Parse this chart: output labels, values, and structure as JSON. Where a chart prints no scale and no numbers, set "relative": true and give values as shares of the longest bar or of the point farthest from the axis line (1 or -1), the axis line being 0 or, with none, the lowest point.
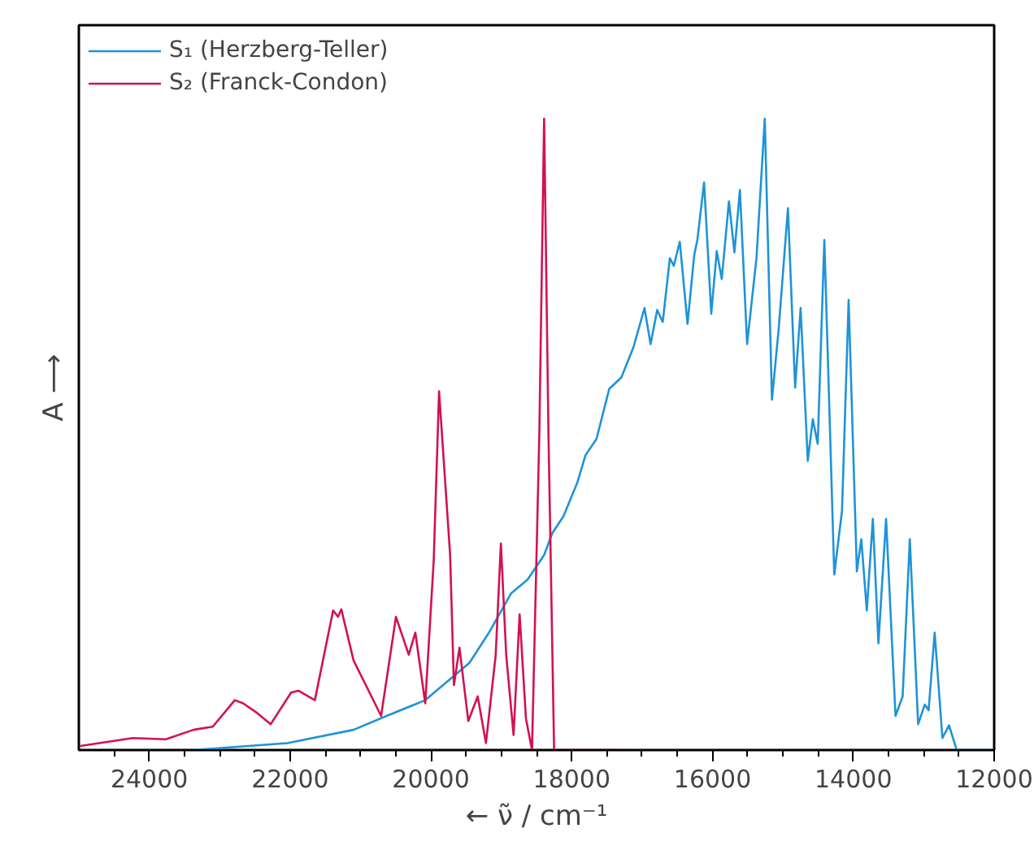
{
  "chart_data": {
    "type": "line",
    "relative": true,
    "xlabel": "← ν̃ / cm⁻¹",
    "ylabel": "A ⟶",
    "xlim": [
      25000,
      12000
    ],
    "xticks": [
      {
        "value": 24500,
        "label": null
      },
      24000,
      {
        "value": 23500,
        "label": null
      },
      {
        "value": 23000,
        "label": null
      },
      {
        "value": 22500,
        "label": null
      },
      22000,
      {
        "value": 21500,
        "label": null
      },
      {
        "value": 21000,
        "label": null
      },
      {
        "value": 20500,
        "label": null
      },
      20000,
      {
        "value": 19500,
        "label": null
      },
      {
        "value": 19000,
        "label": null
      },
      {
        "value": 18500,
        "label": null
      },
      18000,
      {
        "value": 17500,
        "label": null
      },
      {
        "value": 17000,
        "label": null
      },
      {
        "value": 16500,
        "label": null
      },
      16000,
      {
        "value": 15500,
        "label": null
      },
      {
        "value": 15000,
        "label": null
      },
      {
        "value": 14500,
        "label": null
      },
      14000,
      {
        "value": 13500,
        "label": null
      },
      {
        "value": 13000,
        "label": null
      },
      {
        "value": 12500,
        "label": null
      },
      12000
    ],
    "grid": false,
    "legend": "top left",
    "marker": "none",
    "line_style": "solid",
    "series": [
      {
        "name": "S₁ (Herzberg-Teller)",
        "color": "#1f93d8",
        "x": [
          23373,
          22040,
          21099,
          20629,
          20080,
          19453,
          19175,
          18862,
          18627,
          18392,
          18274,
          18118,
          17922,
          17804,
          17647,
          17467,
          17295,
          17123,
          16966,
          16880,
          16786,
          16707,
          16606,
          16550,
          16465,
          16355,
          16261,
          16214,
          16120,
          16018,
          15940,
          15869,
          15767,
          15689,
          15611,
          15509,
          15376,
          15258,
          15156,
          15062,
          14929,
          14827,
          14749,
          14647,
          14576,
          14506,
          14412,
          14271,
          14161,
          14067,
          13950,
          13887,
          13809,
          13723,
          13644,
          13535,
          13401,
          13300,
          13198,
          13080,
          12986,
          12931,
          12845,
          12735,
          12641,
          12532,
          12000
        ],
        "values": [
          0,
          0.011,
          0.032,
          0.054,
          0.079,
          0.138,
          0.186,
          0.248,
          0.27,
          0.309,
          0.344,
          0.37,
          0.423,
          0.467,
          0.493,
          0.572,
          0.59,
          0.638,
          0.7,
          0.643,
          0.697,
          0.678,
          0.779,
          0.767,
          0.805,
          0.675,
          0.783,
          0.809,
          0.899,
          0.691,
          0.79,
          0.746,
          0.869,
          0.788,
          0.887,
          0.643,
          0.779,
          1.0,
          0.555,
          0.665,
          0.858,
          0.574,
          0.7,
          0.458,
          0.524,
          0.485,
          0.808,
          0.278,
          0.379,
          0.713,
          0.283,
          0.334,
          0.221,
          0.366,
          0.169,
          0.366,
          0.054,
          0.085,
          0.334,
          0.041,
          0.072,
          0.063,
          0.186,
          0.019,
          0.039,
          0,
          0
        ]
      },
      {
        "name": "S₂ (Franck-Condon)",
        "color": "#d2124e",
        "x": [
          25000,
          24235,
          23765,
          23373,
          23098,
          22785,
          22667,
          22471,
          22275,
          21985,
          21883,
          21648,
          21389,
          21319,
          21272,
          21099,
          20707,
          20496,
          20315,
          20221,
          20080,
          19960,
          19884,
          19727,
          19673,
          19594,
          19469,
          19335,
          19218,
          19080,
          19006,
          18930,
          18826,
          18740,
          18650,
          18564,
          18460,
          18392,
          18330,
          18250,
          17373
        ],
        "values": [
          0.006,
          0.019,
          0.017,
          0.032,
          0.037,
          0.079,
          0.074,
          0.059,
          0.041,
          0.091,
          0.094,
          0.079,
          0.221,
          0.211,
          0.223,
          0.142,
          0.054,
          0.211,
          0.151,
          0.186,
          0.074,
          0.3,
          0.568,
          0.309,
          0.103,
          0.162,
          0.046,
          0.085,
          0.011,
          0.15,
          0.327,
          0.15,
          0.024,
          0.215,
          0.05,
          0,
          0.5,
          1.0,
          0.5,
          0,
          0
        ]
      }
    ]
  }
}
